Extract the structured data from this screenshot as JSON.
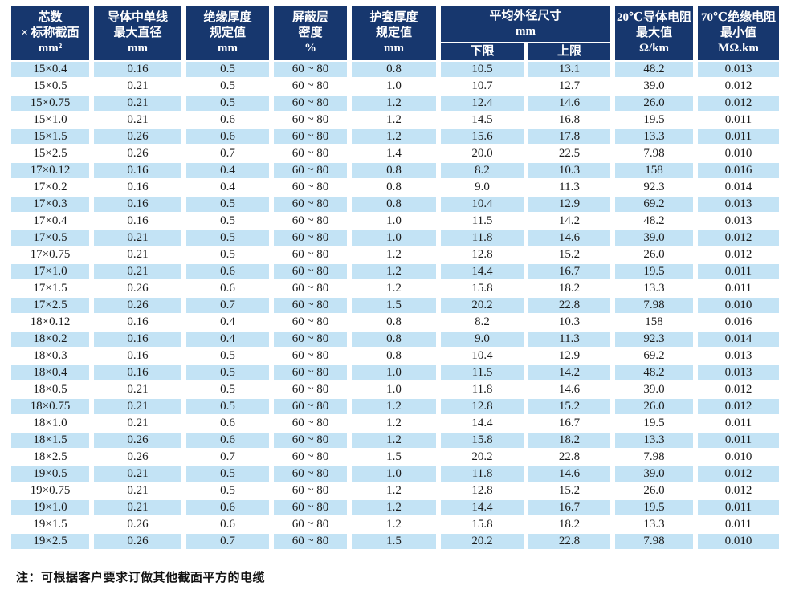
{
  "table": {
    "columns": [
      {
        "label": "芯数\n× 标称截面\nmm²"
      },
      {
        "label": "导体中单线\n最大直径\nmm"
      },
      {
        "label": "绝缘厚度\n规定值\nmm"
      },
      {
        "label": "屏蔽层\n密度\n%"
      },
      {
        "label": "护套厚度\n规定值\nmm"
      },
      {
        "label": "20℃导体电阻\n最大值\nΩ/km"
      },
      {
        "label": "70℃绝缘电阻\n最小值\nMΩ.km"
      }
    ],
    "outer_group": {
      "label": "平均外径尺寸\nmm",
      "sub": [
        "下限",
        "上限"
      ]
    },
    "rows": [
      [
        "15×0.4",
        "0.16",
        "0.5",
        "60 ~ 80",
        "0.8",
        "10.5",
        "13.1",
        "48.2",
        "0.013"
      ],
      [
        "15×0.5",
        "0.21",
        "0.5",
        "60 ~ 80",
        "1.0",
        "10.7",
        "12.7",
        "39.0",
        "0.012"
      ],
      [
        "15×0.75",
        "0.21",
        "0.5",
        "60 ~ 80",
        "1.2",
        "12.4",
        "14.6",
        "26.0",
        "0.012"
      ],
      [
        "15×1.0",
        "0.21",
        "0.6",
        "60 ~ 80",
        "1.2",
        "14.5",
        "16.8",
        "19.5",
        "0.011"
      ],
      [
        "15×1.5",
        "0.26",
        "0.6",
        "60 ~ 80",
        "1.2",
        "15.6",
        "17.8",
        "13.3",
        "0.011"
      ],
      [
        "15×2.5",
        "0.26",
        "0.7",
        "60 ~ 80",
        "1.4",
        "20.0",
        "22.5",
        "7.98",
        "0.010"
      ],
      [
        "17×0.12",
        "0.16",
        "0.4",
        "60 ~ 80",
        "0.8",
        "8.2",
        "10.3",
        "158",
        "0.016"
      ],
      [
        "17×0.2",
        "0.16",
        "0.4",
        "60 ~ 80",
        "0.8",
        "9.0",
        "11.3",
        "92.3",
        "0.014"
      ],
      [
        "17×0.3",
        "0.16",
        "0.5",
        "60 ~ 80",
        "0.8",
        "10.4",
        "12.9",
        "69.2",
        "0.013"
      ],
      [
        "17×0.4",
        "0.16",
        "0.5",
        "60 ~ 80",
        "1.0",
        "11.5",
        "14.2",
        "48.2",
        "0.013"
      ],
      [
        "17×0.5",
        "0.21",
        "0.5",
        "60 ~ 80",
        "1.0",
        "11.8",
        "14.6",
        "39.0",
        "0.012"
      ],
      [
        "17×0.75",
        "0.21",
        "0.5",
        "60 ~ 80",
        "1.2",
        "12.8",
        "15.2",
        "26.0",
        "0.012"
      ],
      [
        "17×1.0",
        "0.21",
        "0.6",
        "60 ~ 80",
        "1.2",
        "14.4",
        "16.7",
        "19.5",
        "0.011"
      ],
      [
        "17×1.5",
        "0.26",
        "0.6",
        "60 ~ 80",
        "1.2",
        "15.8",
        "18.2",
        "13.3",
        "0.011"
      ],
      [
        "17×2.5",
        "0.26",
        "0.7",
        "60 ~ 80",
        "1.5",
        "20.2",
        "22.8",
        "7.98",
        "0.010"
      ],
      [
        "18×0.12",
        "0.16",
        "0.4",
        "60 ~ 80",
        "0.8",
        "8.2",
        "10.3",
        "158",
        "0.016"
      ],
      [
        "18×0.2",
        "0.16",
        "0.4",
        "60 ~ 80",
        "0.8",
        "9.0",
        "11.3",
        "92.3",
        "0.014"
      ],
      [
        "18×0.3",
        "0.16",
        "0.5",
        "60 ~ 80",
        "0.8",
        "10.4",
        "12.9",
        "69.2",
        "0.013"
      ],
      [
        "18×0.4",
        "0.16",
        "0.5",
        "60 ~ 80",
        "1.0",
        "11.5",
        "14.2",
        "48.2",
        "0.013"
      ],
      [
        "18×0.5",
        "0.21",
        "0.5",
        "60 ~ 80",
        "1.0",
        "11.8",
        "14.6",
        "39.0",
        "0.012"
      ],
      [
        "18×0.75",
        "0.21",
        "0.5",
        "60 ~ 80",
        "1.2",
        "12.8",
        "15.2",
        "26.0",
        "0.012"
      ],
      [
        "18×1.0",
        "0.21",
        "0.6",
        "60 ~ 80",
        "1.2",
        "14.4",
        "16.7",
        "19.5",
        "0.011"
      ],
      [
        "18×1.5",
        "0.26",
        "0.6",
        "60 ~ 80",
        "1.2",
        "15.8",
        "18.2",
        "13.3",
        "0.011"
      ],
      [
        "18×2.5",
        "0.26",
        "0.7",
        "60 ~ 80",
        "1.5",
        "20.2",
        "22.8",
        "7.98",
        "0.010"
      ],
      [
        "19×0.5",
        "0.21",
        "0.5",
        "60 ~ 80",
        "1.0",
        "11.8",
        "14.6",
        "39.0",
        "0.012"
      ],
      [
        "19×0.75",
        "0.21",
        "0.5",
        "60 ~ 80",
        "1.2",
        "12.8",
        "15.2",
        "26.0",
        "0.012"
      ],
      [
        "19×1.0",
        "0.21",
        "0.6",
        "60 ~ 80",
        "1.2",
        "14.4",
        "16.7",
        "19.5",
        "0.011"
      ],
      [
        "19×1.5",
        "0.26",
        "0.6",
        "60 ~ 80",
        "1.2",
        "15.8",
        "18.2",
        "13.3",
        "0.011"
      ],
      [
        "19×2.5",
        "0.26",
        "0.7",
        "60 ~ 80",
        "1.5",
        "20.2",
        "22.8",
        "7.98",
        "0.010"
      ]
    ]
  },
  "note": "注：可根据客户要求订做其他截面平方的电缆",
  "colors": {
    "header_bg": "#17376e",
    "header_fg": "#ffffff",
    "row_alt_bg": "#c3e3f5",
    "row_bg": "#ffffff",
    "cell_fg": "#1c1c1c"
  }
}
